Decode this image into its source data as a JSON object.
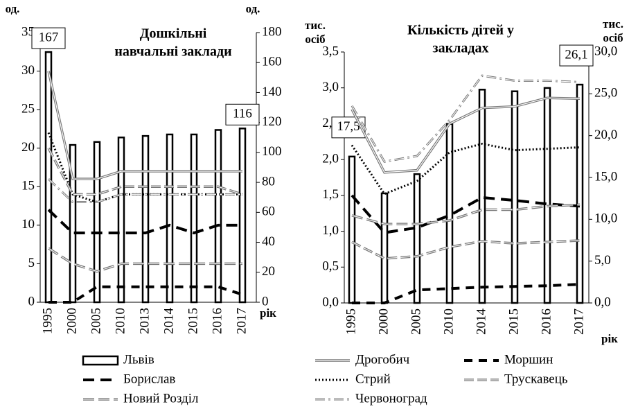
{
  "chart_data": [
    {
      "type": "bar-line",
      "title": [
        "Дошкільні",
        "навчальні заклади"
      ],
      "y_label": [
        "од."
      ],
      "y2_label": [
        "од."
      ],
      "x_label": "рік",
      "categories": [
        "1995",
        "2000",
        "2005",
        "2010",
        "2013",
        "2014",
        "2015",
        "2016",
        "2017"
      ],
      "ylim": [
        0,
        35
      ],
      "yticks": [
        0,
        5,
        10,
        15,
        20,
        25,
        30,
        35
      ],
      "y2lim": [
        0,
        180
      ],
      "y2ticks": [
        0,
        20,
        40,
        60,
        80,
        100,
        120,
        140,
        160,
        180
      ],
      "series": [
        {
          "name": "Львів",
          "color": "#000000",
          "axis": "y2",
          "values": [
            167,
            105,
            107,
            110,
            111,
            112,
            112,
            115,
            116
          ],
          "value_labels": [
            "167",
            null,
            null,
            null,
            null,
            null,
            null,
            null,
            "116"
          ]
        },
        {
          "name": "Борислав",
          "color": "#000000",
          "values": [
            12,
            9,
            9,
            9,
            9,
            10,
            9,
            10,
            10
          ]
        },
        {
          "name": "Новий Розділ",
          "color": "#777777",
          "values": [
            7,
            5,
            4,
            5,
            5,
            5,
            5,
            5,
            5
          ]
        },
        {
          "name": "Дрогобич",
          "color": "#777777",
          "values": [
            30,
            16,
            16,
            17,
            17,
            17,
            17,
            17,
            17
          ]
        },
        {
          "name": "Моршин",
          "color": "#000000",
          "values": [
            0,
            0,
            2,
            2,
            2,
            2,
            2,
            2,
            1
          ]
        },
        {
          "name": "Стрий",
          "color": "#000000",
          "values": [
            22,
            14,
            13,
            14,
            14,
            14,
            14,
            14,
            14
          ]
        },
        {
          "name": "Трускавець",
          "color": "#777777",
          "values": [
            20,
            14,
            14,
            15,
            15,
            15,
            15,
            15,
            14
          ]
        },
        {
          "name": "Червоноград",
          "color": "#777777",
          "values": [
            16,
            13,
            13,
            14,
            14,
            14,
            14,
            14,
            14
          ]
        }
      ]
    },
    {
      "type": "bar-line",
      "title": [
        "Кількість дітей у",
        "закладах"
      ],
      "y_label": [
        "тис.",
        "осіб"
      ],
      "y2_label": [
        "тис.",
        "осіб"
      ],
      "x_label": "рік",
      "categories": [
        "1995",
        "2000",
        "2005",
        "2010",
        "2014",
        "2015",
        "2016",
        "2017"
      ],
      "ylim": [
        0,
        3.5
      ],
      "yticks": [
        {
          "value": 0,
          "label": "0,0"
        },
        {
          "value": 0.5,
          "label": "0,5"
        },
        {
          "value": 1,
          "label": "1,0"
        },
        {
          "value": 1.5,
          "label": "1,5"
        },
        {
          "value": 2,
          "label": "2,0"
        },
        {
          "value": 2.5,
          "label": "2,5"
        },
        {
          "value": 3,
          "label": "3,0"
        },
        {
          "value": 3.5,
          "label": "3,5"
        }
      ],
      "y2lim": [
        0,
        30
      ],
      "y2ticks": [
        {
          "value": 0,
          "label": "0,0"
        },
        {
          "value": 5,
          "label": "5,0"
        },
        {
          "value": 10,
          "label": "10,0"
        },
        {
          "value": 15,
          "label": "15,0"
        },
        {
          "value": 20,
          "label": "20,0"
        },
        {
          "value": 25,
          "label": "25,0"
        },
        {
          "value": 30,
          "label": "30,0"
        }
      ],
      "series": [
        {
          "name": "Львів",
          "color": "#000000",
          "axis": "y2",
          "values": [
            17.5,
            13.1,
            15.4,
            21.4,
            25.5,
            25.3,
            25.7,
            26.1
          ],
          "value_labels": [
            "17,5",
            null,
            null,
            null,
            null,
            null,
            null,
            "26,1"
          ]
        },
        {
          "name": "Борислав",
          "color": "#000000",
          "values": [
            1.5,
            0.98,
            1.05,
            1.22,
            1.47,
            1.43,
            1.38,
            1.35
          ]
        },
        {
          "name": "Новий Розділ",
          "color": "#777777",
          "values": [
            1.22,
            1.1,
            1.1,
            1.15,
            1.3,
            1.3,
            1.35,
            1.37
          ]
        },
        {
          "name": "Дрогобич",
          "color": "#777777",
          "values": [
            2.7,
            1.82,
            1.85,
            2.5,
            2.72,
            2.74,
            2.86,
            2.85
          ]
        },
        {
          "name": "Моршин",
          "color": "#000000",
          "values": [
            0,
            0,
            0.18,
            0.2,
            0.22,
            0.23,
            0.24,
            0.26
          ]
        },
        {
          "name": "Стрий",
          "color": "#000000",
          "values": [
            2.2,
            1.52,
            1.7,
            2.1,
            2.22,
            2.13,
            2.15,
            2.17
          ]
        },
        {
          "name": "Трускавець",
          "color": "#777777",
          "values": [
            0.85,
            0.62,
            0.65,
            0.78,
            0.86,
            0.83,
            0.85,
            0.87
          ]
        },
        {
          "name": "Червоноград",
          "color": "#777777",
          "values": [
            2.75,
            1.97,
            2.05,
            2.55,
            3.17,
            3.1,
            3.1,
            3.08
          ]
        }
      ]
    }
  ]
}
